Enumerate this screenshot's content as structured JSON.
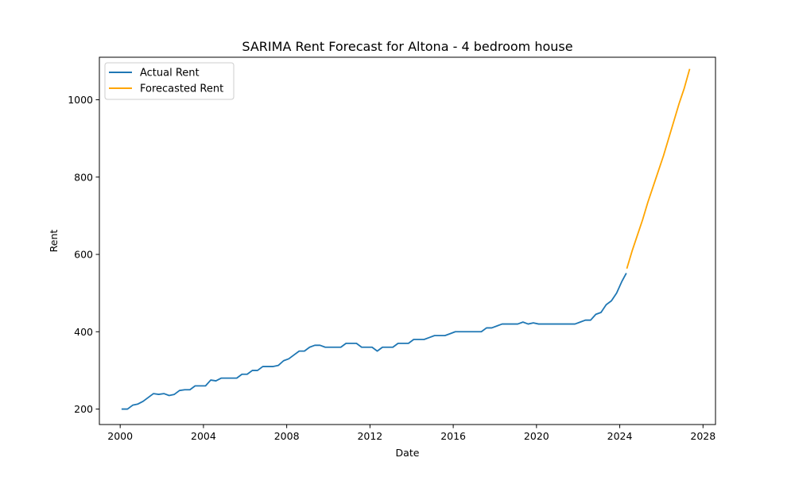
{
  "chart_data": {
    "type": "line",
    "title": "SARIMA Rent Forecast for Altona - 4 bedroom house",
    "xlabel": "Date",
    "ylabel": "Rent",
    "xlim": [
      1999.0,
      2028.6
    ],
    "ylim": [
      160,
      1110
    ],
    "x_ticks": [
      2000,
      2004,
      2008,
      2012,
      2016,
      2020,
      2024,
      2028
    ],
    "y_ticks": [
      200,
      400,
      600,
      800,
      1000
    ],
    "grid": false,
    "legend": "upper left",
    "series": [
      {
        "name": "Actual Rent",
        "color": "#1f77b4",
        "x": [
          2000.1,
          2000.35,
          2000.6,
          2000.85,
          2001.1,
          2001.35,
          2001.6,
          2001.85,
          2002.1,
          2002.35,
          2002.6,
          2002.85,
          2003.1,
          2003.35,
          2003.6,
          2003.85,
          2004.1,
          2004.35,
          2004.6,
          2004.85,
          2005.1,
          2005.35,
          2005.6,
          2005.85,
          2006.1,
          2006.35,
          2006.6,
          2006.85,
          2007.1,
          2007.35,
          2007.6,
          2007.85,
          2008.1,
          2008.35,
          2008.6,
          2008.85,
          2009.1,
          2009.35,
          2009.6,
          2009.85,
          2010.1,
          2010.35,
          2010.6,
          2010.85,
          2011.1,
          2011.35,
          2011.6,
          2011.85,
          2012.1,
          2012.35,
          2012.6,
          2012.85,
          2013.1,
          2013.35,
          2013.6,
          2013.85,
          2014.1,
          2014.35,
          2014.6,
          2014.85,
          2015.1,
          2015.35,
          2015.6,
          2015.85,
          2016.1,
          2016.35,
          2016.6,
          2016.85,
          2017.1,
          2017.35,
          2017.6,
          2017.85,
          2018.1,
          2018.35,
          2018.6,
          2018.85,
          2019.1,
          2019.35,
          2019.6,
          2019.85,
          2020.1,
          2020.35,
          2020.6,
          2020.85,
          2021.1,
          2021.35,
          2021.6,
          2021.85,
          2022.1,
          2022.35,
          2022.6,
          2022.85,
          2023.1,
          2023.35,
          2023.6,
          2023.85,
          2024.1,
          2024.3
        ],
        "values": [
          200,
          200,
          210,
          213,
          220,
          230,
          240,
          238,
          240,
          235,
          238,
          248,
          250,
          250,
          260,
          260,
          260,
          275,
          273,
          280,
          280,
          280,
          280,
          290,
          290,
          300,
          300,
          310,
          310,
          310,
          313,
          325,
          330,
          340,
          350,
          350,
          360,
          365,
          365,
          360,
          360,
          360,
          360,
          370,
          370,
          370,
          360,
          360,
          360,
          350,
          360,
          360,
          360,
          370,
          370,
          370,
          380,
          380,
          380,
          385,
          390,
          390,
          390,
          395,
          400,
          400,
          400,
          400,
          400,
          400,
          410,
          410,
          415,
          420,
          420,
          420,
          420,
          425,
          420,
          423,
          420,
          420,
          420,
          420,
          420,
          420,
          420,
          420,
          425,
          430,
          430,
          445,
          450,
          470,
          480,
          500,
          530,
          550
        ]
      },
      {
        "name": "Forecasted Rent",
        "color": "#ffa500",
        "x": [
          2024.35,
          2024.6,
          2024.85,
          2025.1,
          2025.35,
          2025.6,
          2025.85,
          2026.1,
          2026.35,
          2026.6,
          2026.85,
          2027.1,
          2027.35
        ],
        "values": [
          565,
          610,
          650,
          690,
          735,
          775,
          815,
          855,
          900,
          945,
          990,
          1030,
          1078
        ]
      }
    ]
  }
}
